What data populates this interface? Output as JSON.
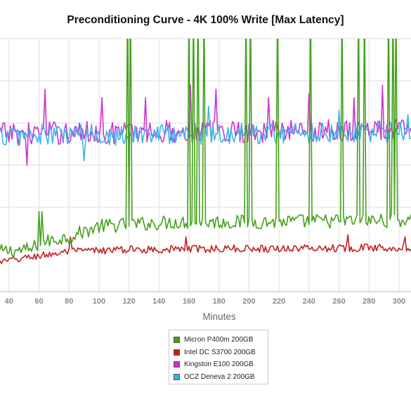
{
  "chart_data": {
    "type": "line",
    "title": "Preconditioning Curve - 4K 100% Write [Max Latency]",
    "xlabel": "Minutes",
    "ylabel": "",
    "xlim": [
      34,
      308
    ],
    "ylim": [
      0,
      6
    ],
    "x_ticks": [
      40,
      60,
      80,
      100,
      120,
      140,
      160,
      180,
      200,
      220,
      240,
      260,
      280,
      300
    ],
    "grid": true,
    "legend_position": "bottom-center",
    "series": [
      {
        "name": "Micron P400m 200GB",
        "color": "#44a01c",
        "baseline": 1.05,
        "trend": [
          [
            34,
            0.95
          ],
          [
            55,
            1.0
          ],
          [
            60,
            1.15
          ],
          [
            80,
            1.3
          ],
          [
            100,
            1.55
          ],
          [
            150,
            1.65
          ],
          [
            200,
            1.65
          ],
          [
            308,
            1.7
          ]
        ],
        "noise": 0.17,
        "spikes": [
          [
            60,
            1.9
          ],
          [
            62,
            1.9
          ],
          [
            119,
            7.0
          ],
          [
            121,
            7.0
          ],
          [
            160,
            7.0
          ],
          [
            163,
            7.0
          ],
          [
            166,
            7.0
          ],
          [
            170,
            7.0
          ],
          [
            198,
            7.0
          ],
          [
            201,
            7.0
          ],
          [
            219,
            7.0
          ],
          [
            241,
            7.0
          ],
          [
            262,
            7.0
          ],
          [
            273,
            7.0
          ],
          [
            277,
            7.0
          ],
          [
            293,
            7.0
          ],
          [
            296,
            7.0
          ],
          [
            298,
            7.0
          ]
        ]
      },
      {
        "name": "Intel DC S3700 200GB",
        "color": "#c02222",
        "trend": [
          [
            34,
            0.7
          ],
          [
            60,
            0.85
          ],
          [
            80,
            0.95
          ],
          [
            120,
            1.0
          ],
          [
            308,
            1.05
          ]
        ],
        "noise": 0.09,
        "spikes": [
          [
            81,
            1.3
          ],
          [
            158,
            1.3
          ],
          [
            266,
            1.35
          ],
          [
            304,
            1.3
          ]
        ]
      },
      {
        "name": "Kingston E100 200GB",
        "color": "#cc33cc",
        "trend": [
          [
            34,
            3.75
          ],
          [
            308,
            3.85
          ]
        ],
        "noise": 0.28,
        "spikes": [
          [
            64,
            4.8
          ],
          [
            102,
            4.6
          ],
          [
            131,
            4.6
          ],
          [
            161,
            4.9
          ],
          [
            178,
            4.8
          ],
          [
            213,
            4.6
          ],
          [
            240,
            4.7
          ],
          [
            270,
            4.6
          ],
          [
            289,
            4.9
          ],
          [
            52,
            3.0
          ]
        ]
      },
      {
        "name": "OCZ Deneva 2 200GB",
        "color": "#3ab4ec",
        "trend": [
          [
            34,
            3.7
          ],
          [
            308,
            3.8
          ]
        ],
        "noise": 0.26,
        "spikes": [
          [
            90,
            3.1
          ],
          [
            173,
            4.4
          ],
          [
            260,
            4.3
          ],
          [
            306,
            4.2
          ]
        ]
      }
    ]
  }
}
